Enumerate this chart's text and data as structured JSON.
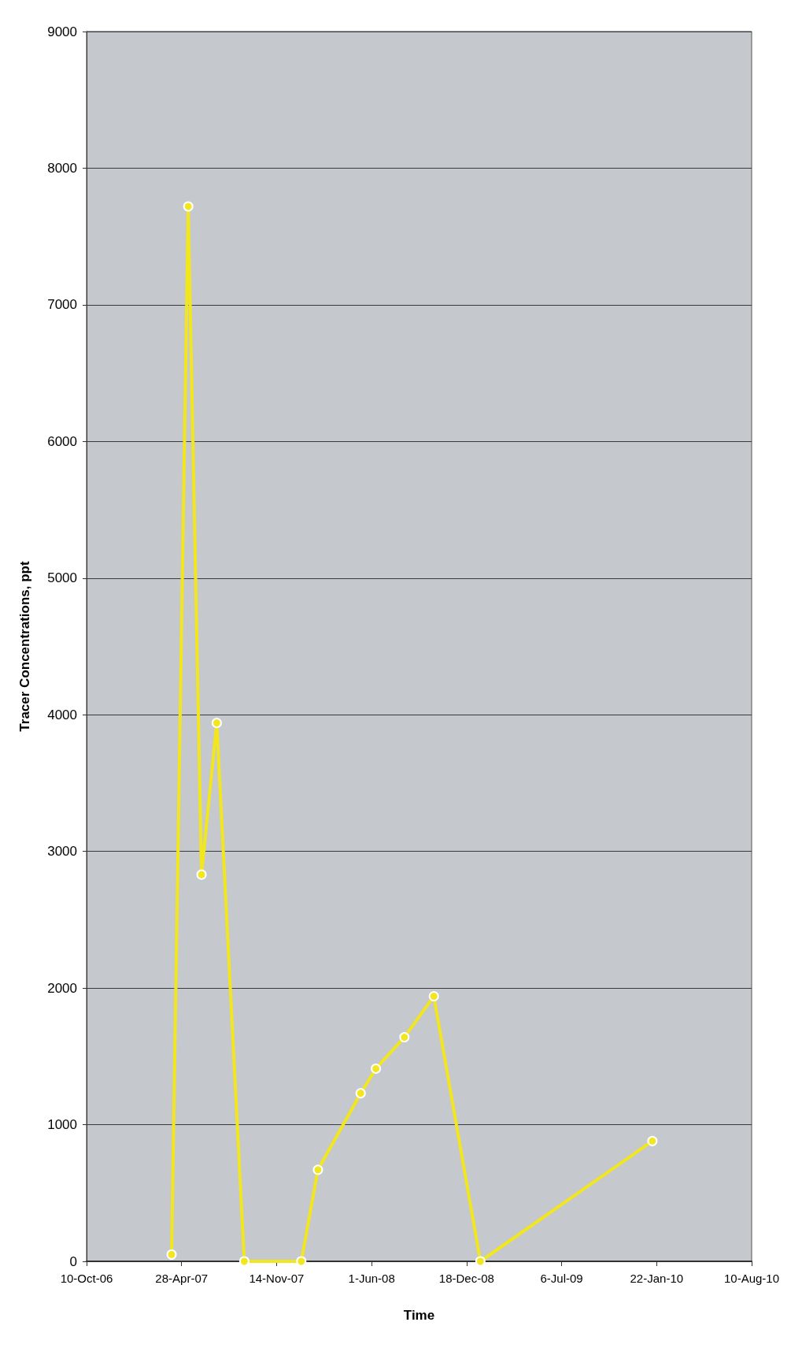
{
  "chart_data": {
    "type": "line",
    "xlabel": "Time",
    "ylabel": "Tracer Concentrations, ppt",
    "x": [
      "2007-04-07",
      "2007-05-12",
      "2007-06-09",
      "2007-07-11",
      "2007-09-07",
      "2008-01-05",
      "2008-02-09",
      "2008-05-09",
      "2008-06-10",
      "2008-08-09",
      "2008-10-10",
      "2009-01-16",
      "2010-01-13"
    ],
    "series": [
      {
        "color": "#f2e61e",
        "values": [
          50,
          7720,
          2830,
          3940,
          0,
          0,
          670,
          1230,
          1410,
          1640,
          1940,
          0,
          880
        ]
      }
    ],
    "xlim": [
      "2006-10-10",
      "2010-08-10"
    ],
    "xticks": [
      {
        "value": "2006-10-10",
        "label": "10-Oct-06"
      },
      {
        "value": "2007-04-28",
        "label": "28-Apr-07"
      },
      {
        "value": "2007-11-14",
        "label": "14-Nov-07"
      },
      {
        "value": "2008-06-01",
        "label": "1-Jun-08"
      },
      {
        "value": "2008-12-18",
        "label": "18-Dec-08"
      },
      {
        "value": "2009-07-06",
        "label": "6-Jul-09"
      },
      {
        "value": "2010-01-22",
        "label": "22-Jan-10"
      },
      {
        "value": "2010-08-10",
        "label": "10-Aug-10"
      }
    ],
    "ylim": [
      0,
      9000
    ],
    "yticks": [
      0,
      1000,
      2000,
      3000,
      4000,
      5000,
      6000,
      7000,
      8000,
      9000
    ],
    "grid": "y",
    "marker": "circle",
    "line_style": "solid"
  }
}
